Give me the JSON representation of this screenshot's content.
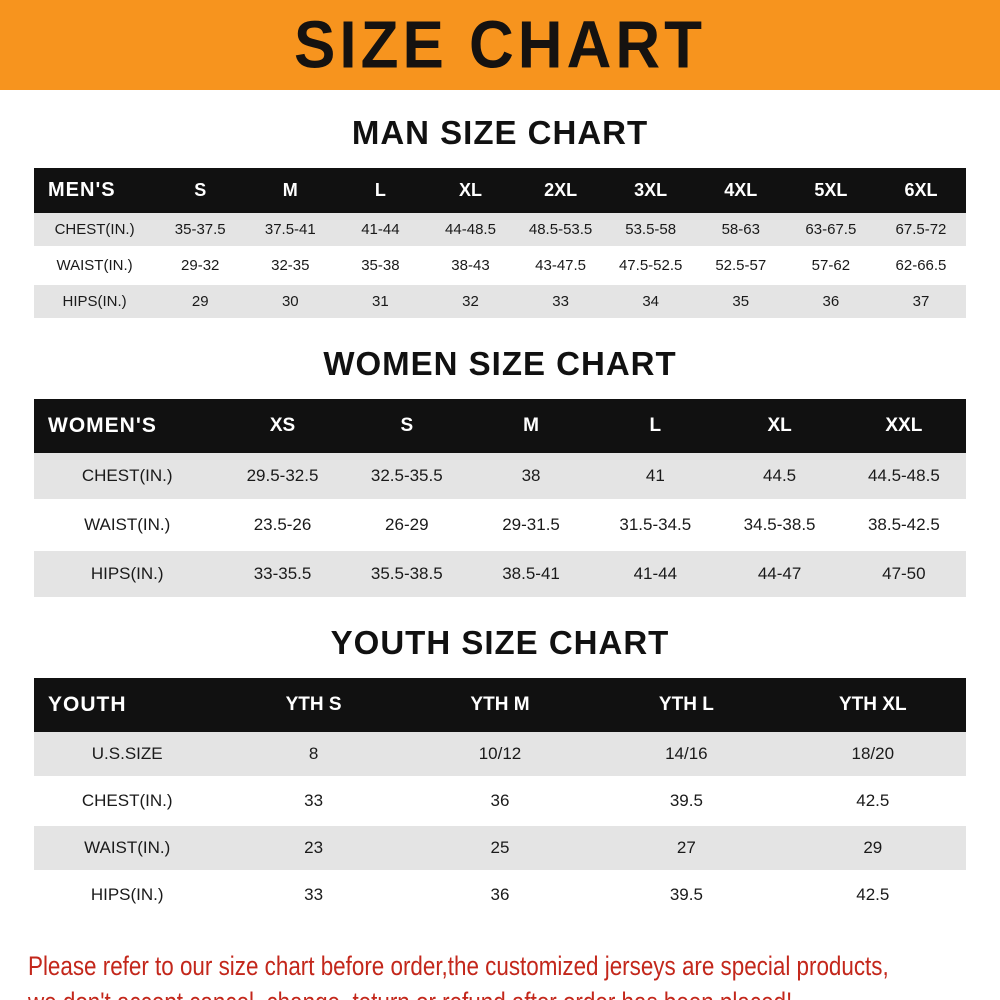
{
  "page": {
    "title": "SIZE CHART",
    "banner_bg": "#F7941E",
    "header_row_bg": "#111111",
    "row_alt_bg": "#E4E4E4",
    "disclaimer_color": "#C3271B",
    "disclaimer_line1": "Please refer to our size chart before order,the customized jerseys are special products,",
    "disclaimer_line2": "we don't accept cancel, change, teturn or refund after order has been placed!"
  },
  "chart_data": [
    {
      "id": "men",
      "type": "table",
      "heading": "MAN SIZE CHART",
      "label_col_width": "13%",
      "header": [
        "MEN'S",
        "S",
        "M",
        "L",
        "XL",
        "2XL",
        "3XL",
        "4XL",
        "5XL",
        "6XL"
      ],
      "rows": [
        [
          "CHEST(IN.)",
          "35-37.5",
          "37.5-41",
          "41-44",
          "44-48.5",
          "48.5-53.5",
          "53.5-58",
          "58-63",
          "63-67.5",
          "67.5-72"
        ],
        [
          "WAIST(IN.)",
          "29-32",
          "32-35",
          "35-38",
          "38-43",
          "43-47.5",
          "47.5-52.5",
          "52.5-57",
          "57-62",
          "62-66.5"
        ],
        [
          "HIPS(IN.)",
          "29",
          "30",
          "31",
          "32",
          "33",
          "34",
          "35",
          "36",
          "37"
        ]
      ]
    },
    {
      "id": "women",
      "type": "table",
      "heading": "WOMEN SIZE CHART",
      "label_col_width": "20%",
      "header": [
        "WOMEN'S",
        "XS",
        "S",
        "M",
        "L",
        "XL",
        "XXL"
      ],
      "rows": [
        [
          "CHEST(IN.)",
          "29.5-32.5",
          "32.5-35.5",
          "38",
          "41",
          "44.5",
          "44.5-48.5"
        ],
        [
          "WAIST(IN.)",
          "23.5-26",
          "26-29",
          "29-31.5",
          "31.5-34.5",
          "34.5-38.5",
          "38.5-42.5"
        ],
        [
          "HIPS(IN.)",
          "33-35.5",
          "35.5-38.5",
          "38.5-41",
          "41-44",
          "44-47",
          "47-50"
        ]
      ]
    },
    {
      "id": "youth",
      "type": "table",
      "heading": "YOUTH SIZE CHART",
      "label_col_width": "20%",
      "header": [
        "YOUTH",
        "YTH S",
        "YTH M",
        "YTH L",
        "YTH XL"
      ],
      "rows": [
        [
          "U.S.SIZE",
          "8",
          "10/12",
          "14/16",
          "18/20"
        ],
        [
          "CHEST(IN.)",
          "33",
          "36",
          "39.5",
          "42.5"
        ],
        [
          "WAIST(IN.)",
          "23",
          "25",
          "27",
          "29"
        ],
        [
          "HIPS(IN.)",
          "33",
          "36",
          "39.5",
          "42.5"
        ]
      ]
    }
  ]
}
